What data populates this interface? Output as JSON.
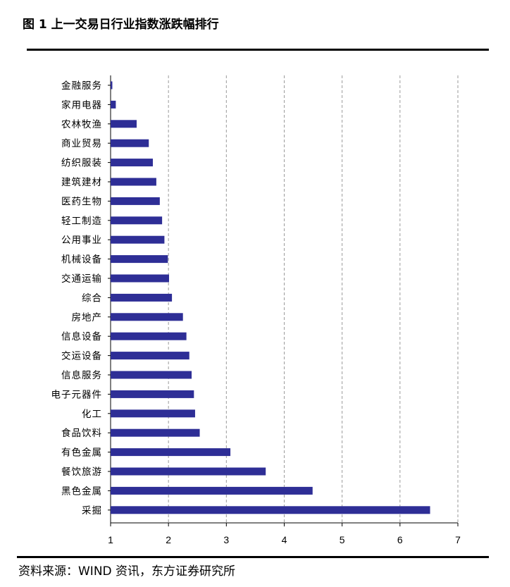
{
  "header": {
    "title": "图 1 上一交易日行业指数涨跌幅排行"
  },
  "footer": {
    "source": "资料来源：WIND 资讯，东方证券研究所"
  },
  "chart_data": {
    "type": "bar",
    "orientation": "horizontal",
    "title": "",
    "xlabel": "",
    "ylabel": "",
    "xlim": [
      1,
      7
    ],
    "xticks": [
      1,
      2,
      3,
      4,
      5,
      6,
      7
    ],
    "grid": "vertical-dashed",
    "bar_color": "#2e2e96",
    "categories": [
      "金融服务",
      "家用电器",
      "农林牧渔",
      "商业贸易",
      "纺织服装",
      "建筑建材",
      "医药生物",
      "轻工制造",
      "公用事业",
      "机械设备",
      "交通运输",
      "综合",
      "房地产",
      "信息设备",
      "交运设备",
      "信息服务",
      "电子元器件",
      "化工",
      "食品饮料",
      "有色金属",
      "餐饮旅游",
      "黑色金属",
      "采掘"
    ],
    "values": [
      1.03,
      1.09,
      1.45,
      1.66,
      1.73,
      1.79,
      1.85,
      1.89,
      1.93,
      1.99,
      2.01,
      2.06,
      2.25,
      2.31,
      2.36,
      2.4,
      2.44,
      2.46,
      2.54,
      3.07,
      3.68,
      4.49,
      6.52
    ]
  }
}
